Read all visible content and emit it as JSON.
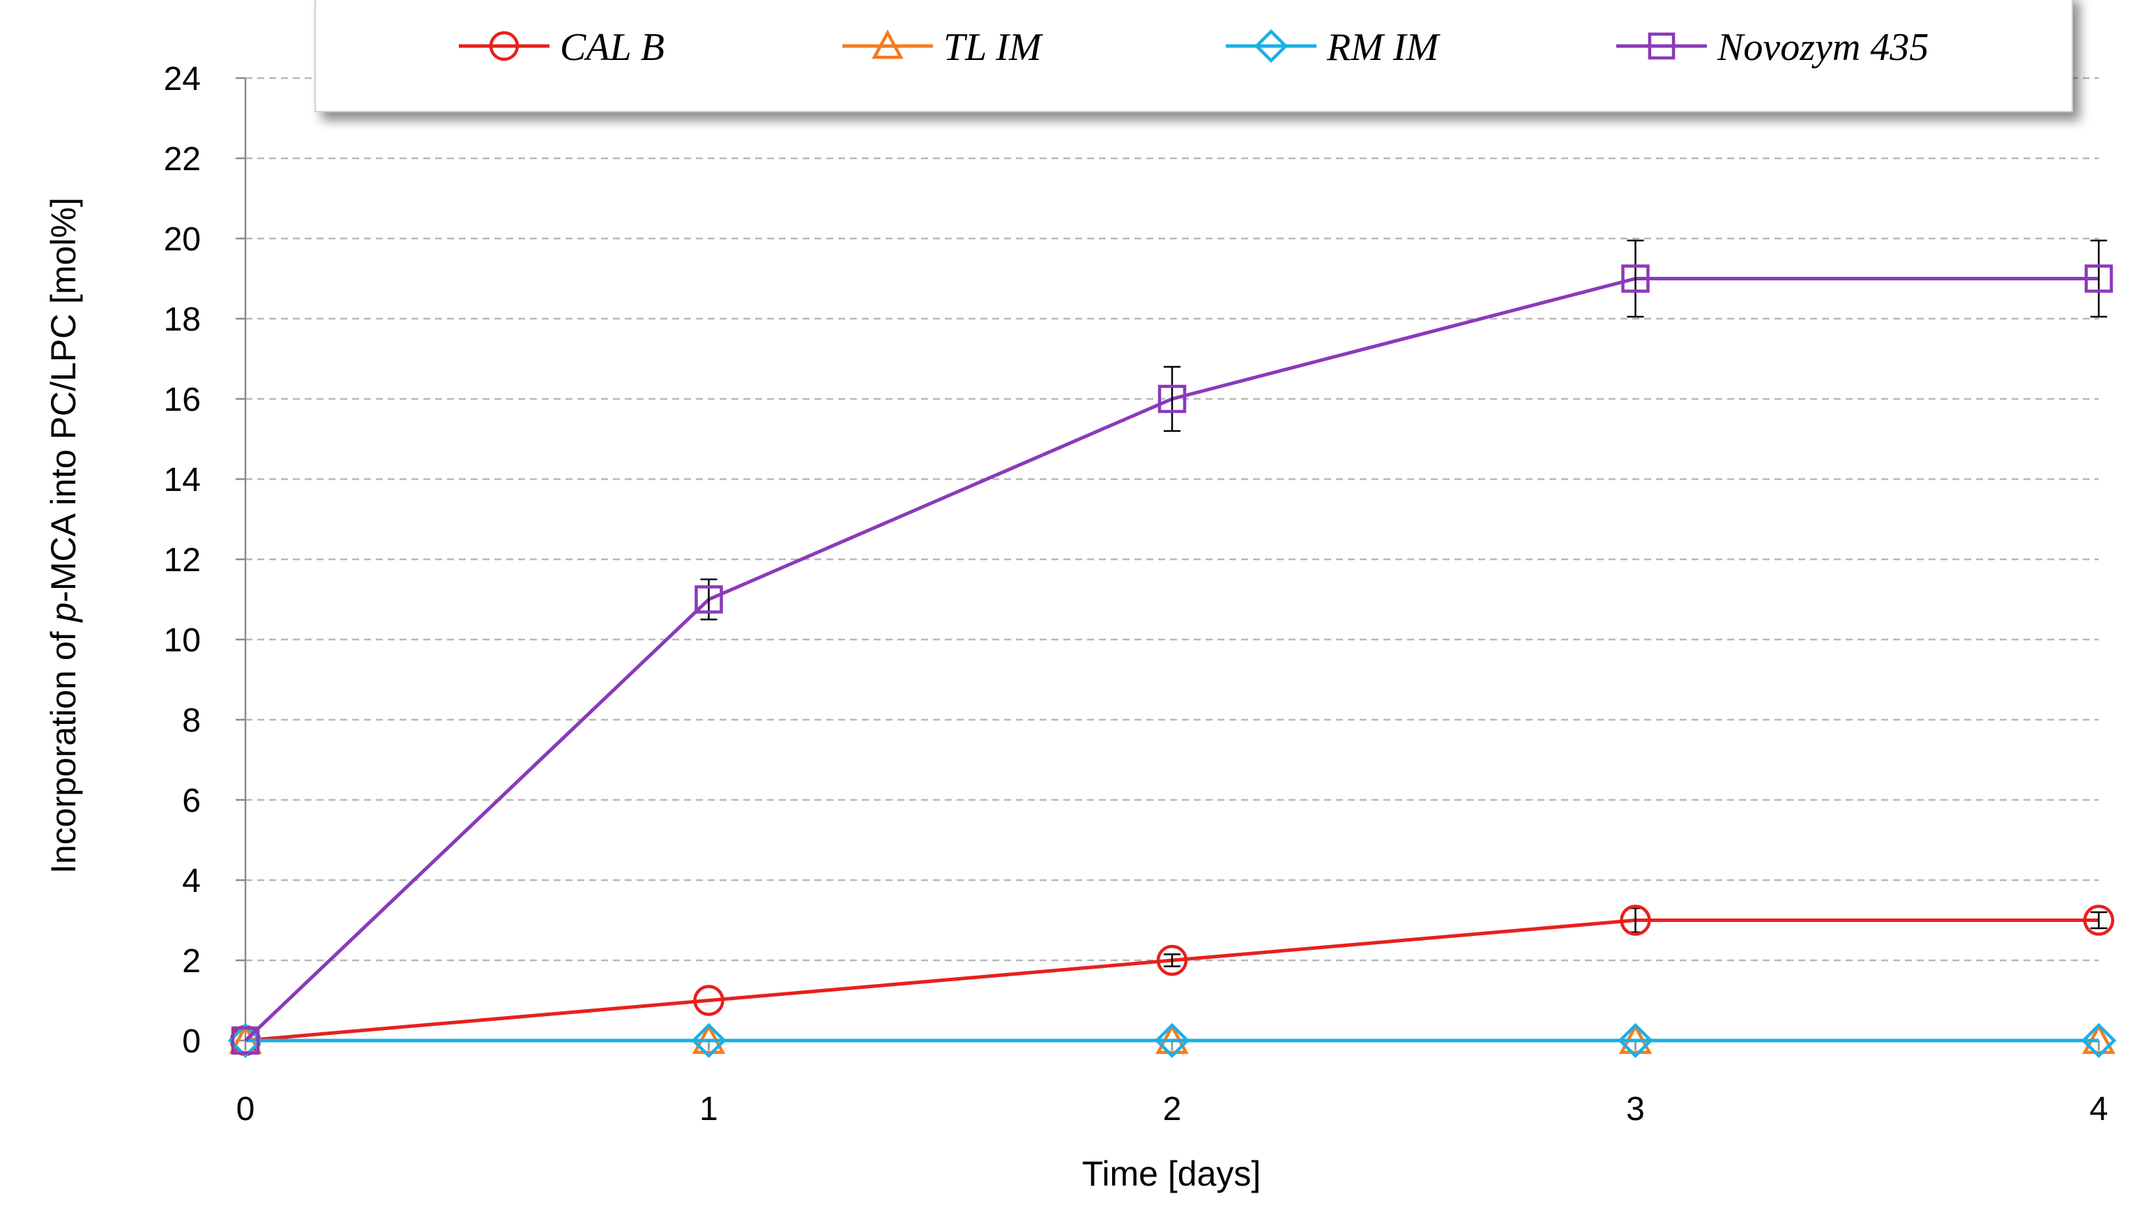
{
  "chart_data": {
    "type": "line",
    "title": "",
    "xlabel": "Time [days]",
    "ylabel_prefix": "Incorporation of ",
    "ylabel_italic": "p",
    "ylabel_suffix": "-MCA into PC/LPC [mol%]",
    "x": [
      0,
      1,
      2,
      3,
      4
    ],
    "xlim": [
      0,
      4
    ],
    "ylim": [
      0,
      24
    ],
    "xticks": [
      "0",
      "1",
      "2",
      "3",
      "4"
    ],
    "yticks": [
      "0",
      "2",
      "4",
      "6",
      "8",
      "10",
      "12",
      "14",
      "16",
      "18",
      "20",
      "22",
      "24"
    ],
    "grid": "horizontal dashed",
    "legend_position": "top",
    "series": [
      {
        "name": "CAL B",
        "marker": "circle",
        "color": "#e8201c",
        "values": [
          0,
          1,
          2,
          3,
          3
        ],
        "errors": [
          0,
          0,
          0.15,
          0.3,
          0.2
        ]
      },
      {
        "name": "TL IM",
        "marker": "triangle",
        "color": "#f47b20",
        "values": [
          0,
          0,
          0,
          0,
          0
        ],
        "errors": [
          0,
          0,
          0,
          0,
          0
        ]
      },
      {
        "name": "RM IM",
        "marker": "diamond",
        "color": "#1ab0e6",
        "values": [
          0,
          0,
          0,
          0,
          0
        ],
        "errors": [
          0,
          0,
          0,
          0,
          0
        ]
      },
      {
        "name": "Novozym 435",
        "marker": "square",
        "color": "#8a3ab9",
        "values": [
          0,
          11,
          16,
          19,
          19
        ],
        "errors": [
          0,
          0.5,
          0.8,
          0.95,
          0.95
        ]
      }
    ]
  }
}
